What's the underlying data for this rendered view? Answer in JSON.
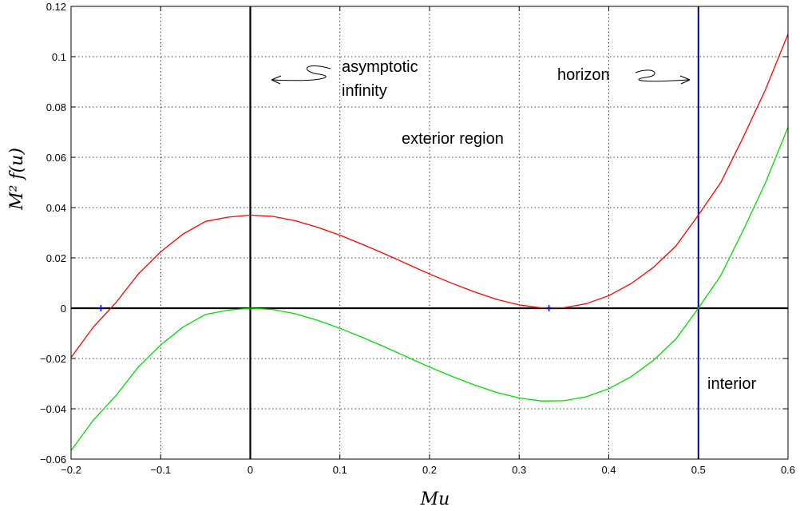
{
  "chart_data": {
    "type": "line",
    "title": "",
    "xlabel": "Mu",
    "ylabel": "M² f(u)",
    "xlim": [
      -0.2,
      0.6
    ],
    "ylim": [
      -0.06,
      0.12
    ],
    "grid": true,
    "x_ticks": [
      -0.2,
      -0.1,
      0,
      0.1,
      0.2,
      0.3,
      0.4,
      0.5,
      0.6
    ],
    "x_tick_labels": [
      "−0.2",
      "−0.1",
      "0",
      "0.1",
      "0.2",
      "0.3",
      "0.4",
      "0.5",
      "0.6"
    ],
    "y_ticks": [
      -0.06,
      -0.04,
      -0.02,
      0,
      0.02,
      0.04,
      0.06,
      0.08,
      0.1,
      0.12
    ],
    "y_tick_labels": [
      "−0.06",
      "−0.04",
      "−0.02",
      "0",
      "0.02",
      "0.04",
      "0.06",
      "0.08",
      "0.1",
      "0.12"
    ],
    "series": [
      {
        "color": "#ff0000",
        "x": [
          -0.2,
          -0.175,
          -0.15,
          -0.125,
          -0.1,
          -0.075,
          -0.05,
          -0.025,
          0,
          0.025,
          0.05,
          0.075,
          0.1,
          0.125,
          0.15,
          0.175,
          0.2,
          0.225,
          0.25,
          0.275,
          0.3,
          0.325,
          0.35,
          0.375,
          0.4,
          0.425,
          0.45,
          0.475,
          0.5,
          0.525,
          0.55,
          0.575,
          0.6
        ],
        "y": [
          -0.0196,
          -0.0074,
          0.0022,
          0.0136,
          0.0224,
          0.0295,
          0.0345,
          0.0362,
          0.037,
          0.0365,
          0.0348,
          0.0322,
          0.029,
          0.0254,
          0.0216,
          0.0176,
          0.0136,
          0.0099,
          0.0065,
          0.0035,
          0.0013,
          0.0001,
          0.0002,
          0.0018,
          0.005,
          0.0098,
          0.0163,
          0.0248,
          0.037,
          0.05,
          0.068,
          0.087,
          0.109
        ]
      },
      {
        "color": "#00dd00",
        "x": [
          -0.2,
          -0.175,
          -0.15,
          -0.125,
          -0.1,
          -0.075,
          -0.05,
          -0.025,
          0,
          0.025,
          0.05,
          0.075,
          0.1,
          0.125,
          0.15,
          0.175,
          0.2,
          0.225,
          0.25,
          0.275,
          0.3,
          0.325,
          0.35,
          0.375,
          0.4,
          0.425,
          0.45,
          0.475,
          0.5,
          0.525,
          0.55,
          0.575,
          0.6
        ],
        "y": [
          -0.0566,
          -0.0444,
          -0.0348,
          -0.0234,
          -0.0146,
          -0.0075,
          -0.0025,
          -0.0008,
          0,
          -0.0005,
          -0.0022,
          -0.0048,
          -0.008,
          -0.0116,
          -0.0154,
          -0.0194,
          -0.0234,
          -0.0271,
          -0.0305,
          -0.0335,
          -0.0357,
          -0.0369,
          -0.0368,
          -0.0352,
          -0.032,
          -0.0272,
          -0.0207,
          -0.0122,
          0,
          0.013,
          0.031,
          0.05,
          0.072
        ]
      }
    ],
    "markers": [
      {
        "x": -0.1667,
        "y": 0,
        "color": "#0000ff"
      },
      {
        "x": 0.3333,
        "y": 0,
        "color": "#0000ff"
      }
    ],
    "reference_lines": {
      "horizontal_y": 0,
      "vertical_black_x": 0,
      "vertical_blue_x": 0.5,
      "blue_color": "#00008b"
    },
    "annotations": {
      "asymptotic_line1": "asymptotic",
      "asymptotic_line2": "infinity",
      "exterior": "exterior region",
      "horizon": "horizon",
      "interior": "interior"
    }
  }
}
